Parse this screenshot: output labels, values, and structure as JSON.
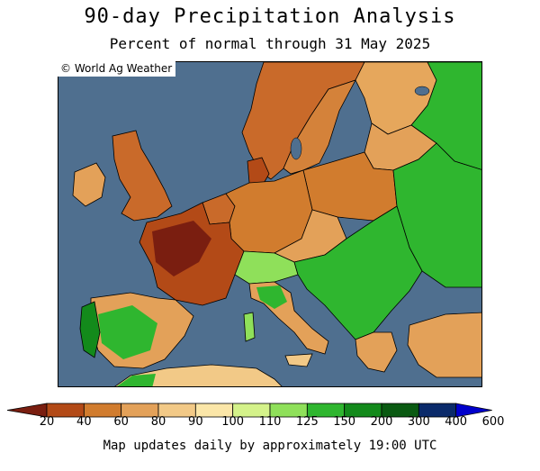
{
  "title": "90-day Precipitation Analysis",
  "subtitle": "Percent of normal through 31 May 2025",
  "copyright": "© World Ag Weather",
  "footer": "Map updates daily by approximately 19:00 UTC",
  "map": {
    "region": "Europe",
    "ocean_color": "#4f6f8f",
    "border_color": "#000000"
  },
  "legend": {
    "bins": [
      {
        "color": "#7a1e10"
      },
      {
        "color": "#b34a17"
      },
      {
        "color": "#d17c2e"
      },
      {
        "color": "#e3a159"
      },
      {
        "color": "#f2c987"
      },
      {
        "color": "#fbe6a8"
      },
      {
        "color": "#d4f28a"
      },
      {
        "color": "#8fe05a"
      },
      {
        "color": "#2fb62f"
      },
      {
        "color": "#138a1b"
      },
      {
        "color": "#0a5a12"
      },
      {
        "color": "#0a2a6a"
      },
      {
        "color": "#0000cc"
      }
    ],
    "labels": [
      "20",
      "40",
      "60",
      "80",
      "90",
      "100",
      "110",
      "125",
      "150",
      "200",
      "300",
      "400",
      "600"
    ]
  }
}
